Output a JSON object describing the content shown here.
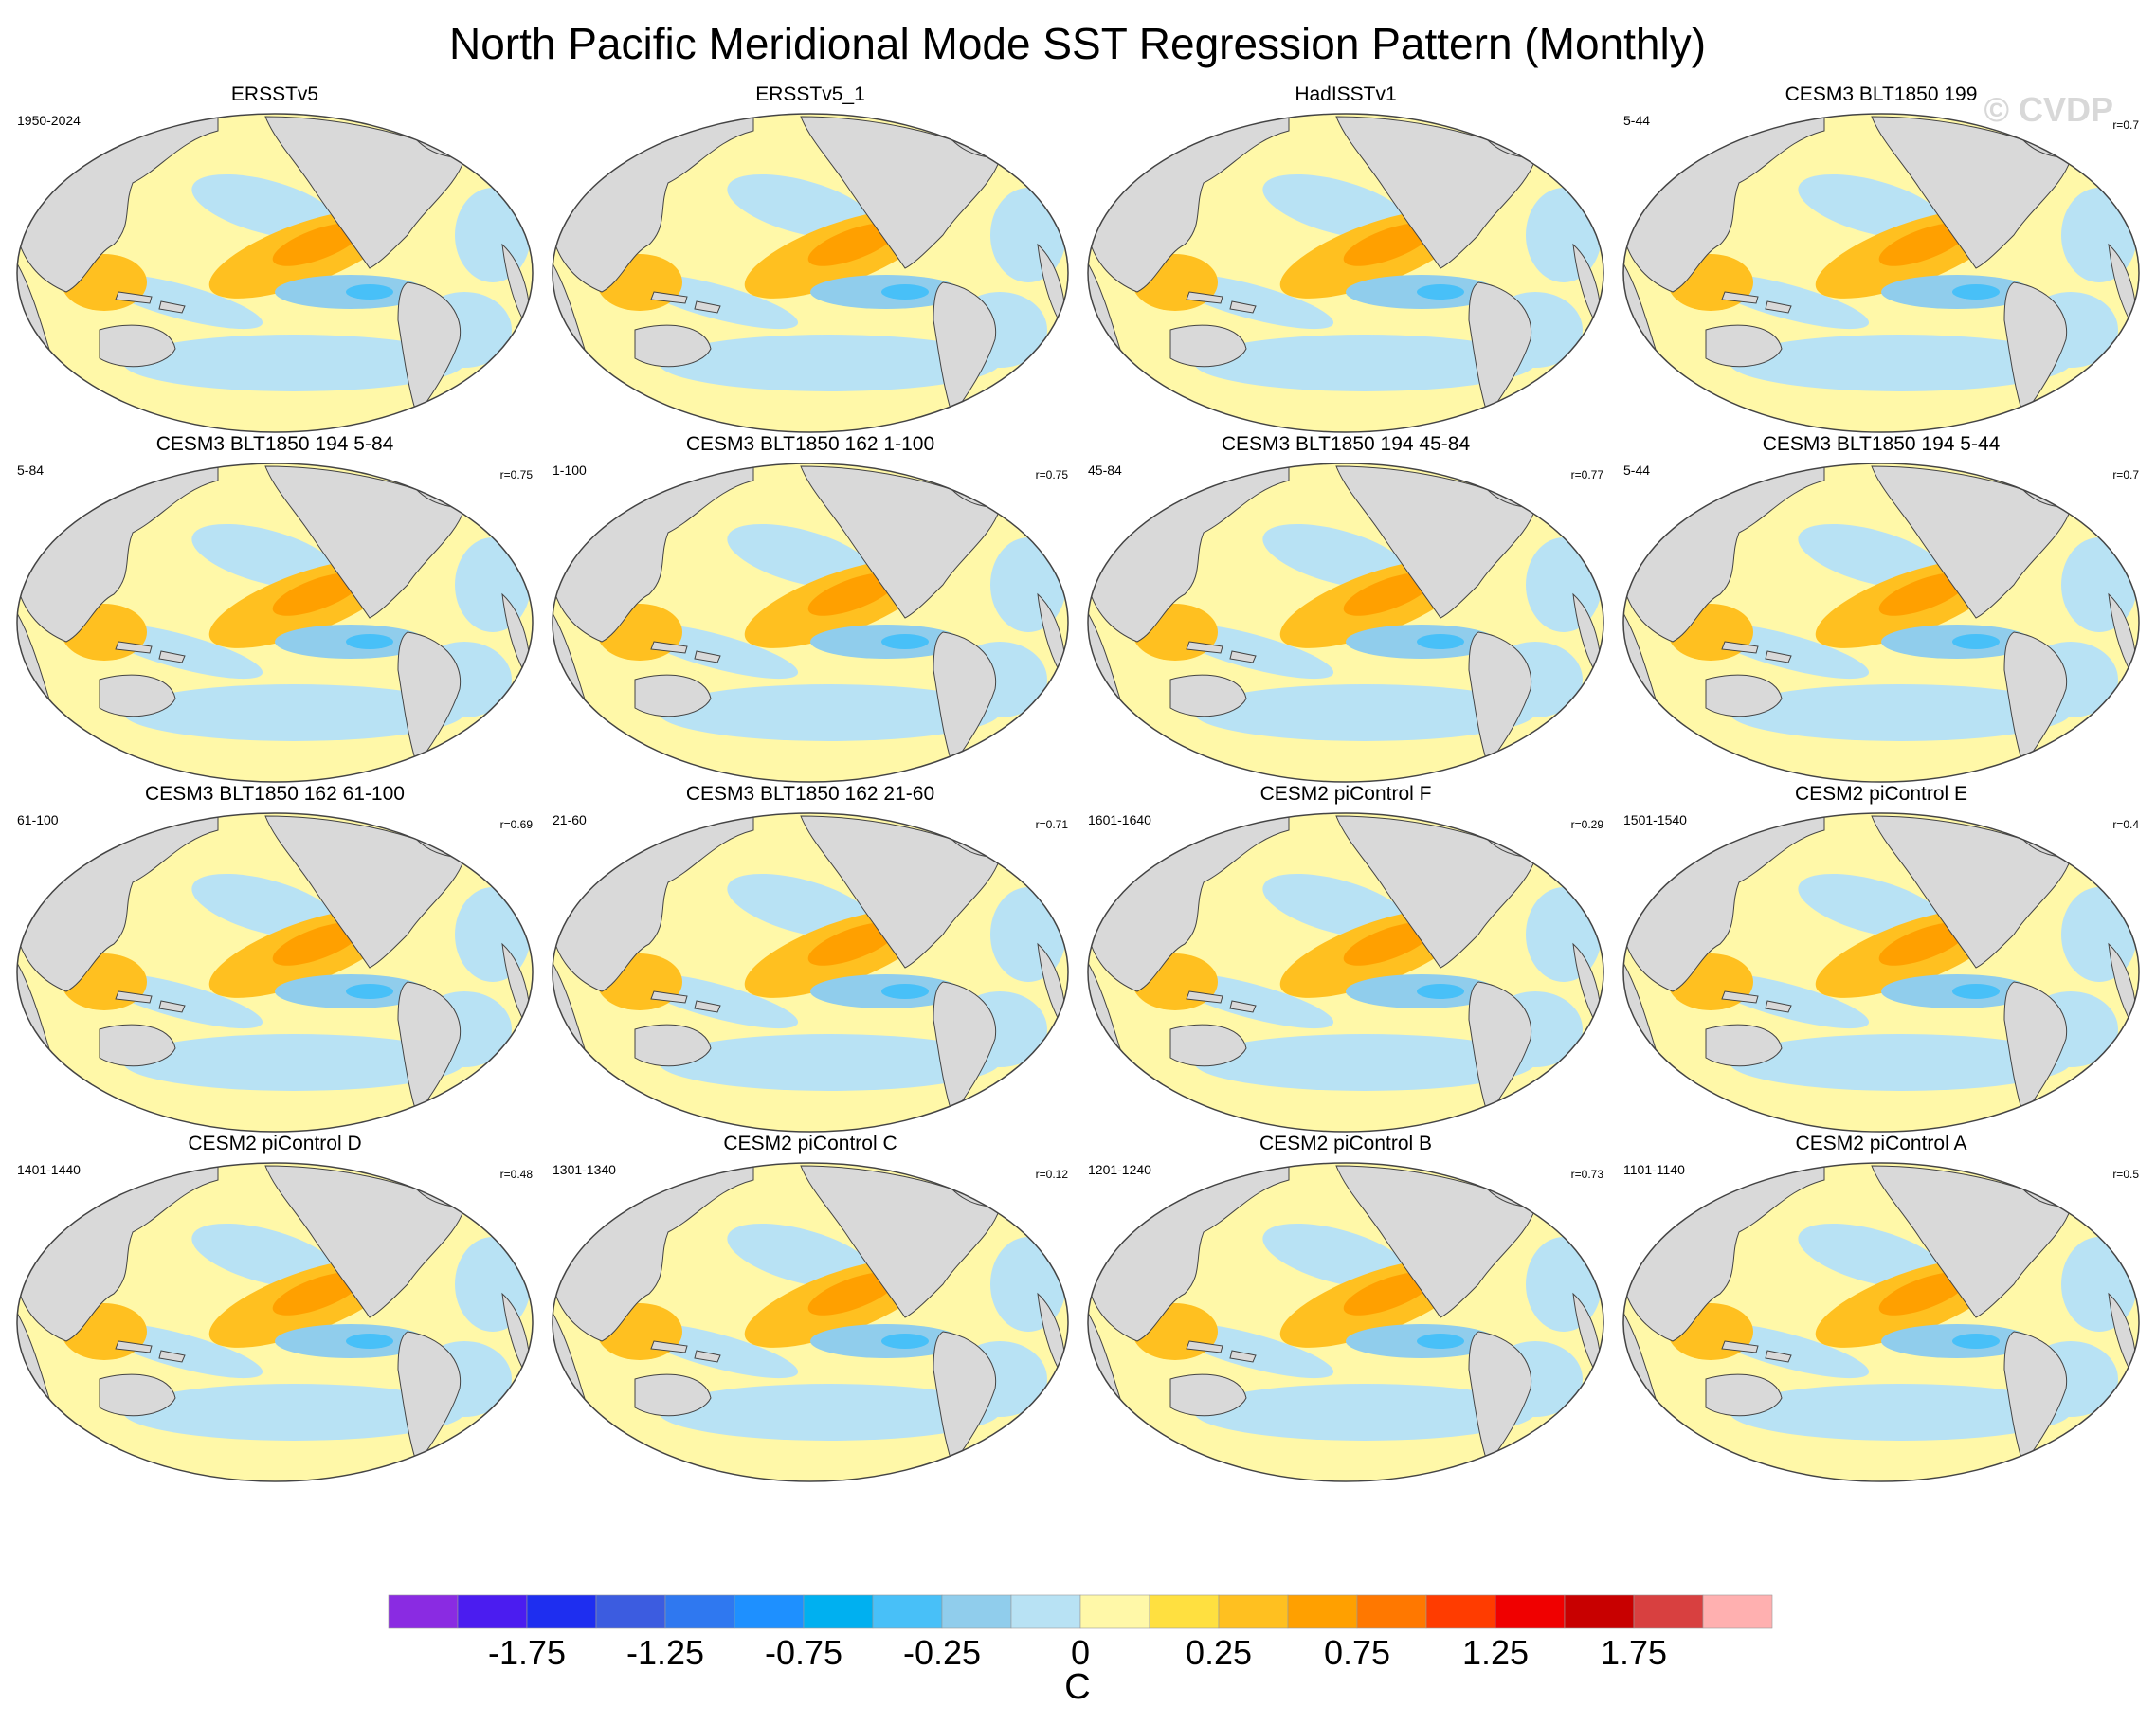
{
  "title": "North Pacific Meridional Mode SST Regression Pattern (Monthly)",
  "watermark": "© CVDP",
  "panels": [
    {
      "title": "ERSSTv5",
      "left": "1950-2024",
      "right": ""
    },
    {
      "title": "ERSSTv5_1",
      "left": "",
      "right": ""
    },
    {
      "title": "HadISSTv1",
      "left": "",
      "right": ""
    },
    {
      "title": "CESM3 BLT1850 199",
      "left": "5-44",
      "right": "r=0.7"
    },
    {
      "title": "CESM3 BLT1850 194 5-84",
      "left": "5-84",
      "right": "r=0.75"
    },
    {
      "title": "CESM3 BLT1850 162 1-100",
      "left": "1-100",
      "right": "r=0.75"
    },
    {
      "title": "CESM3 BLT1850 194 45-84",
      "left": "45-84",
      "right": "r=0.77"
    },
    {
      "title": "CESM3 BLT1850 194 5-44",
      "left": "5-44",
      "right": "r=0.7"
    },
    {
      "title": "CESM3 BLT1850 162 61-100",
      "left": "61-100",
      "right": "r=0.69"
    },
    {
      "title": "CESM3 BLT1850 162 21-60",
      "left": "21-60",
      "right": "r=0.71"
    },
    {
      "title": "CESM2 piControl F",
      "left": "1601-1640",
      "right": "r=0.29"
    },
    {
      "title": "CESM2 piControl E",
      "left": "1501-1540",
      "right": "r=0.4"
    },
    {
      "title": "CESM2 piControl D",
      "left": "1401-1440",
      "right": "r=0.48"
    },
    {
      "title": "CESM2 piControl C",
      "left": "1301-1340",
      "right": "r=0.12"
    },
    {
      "title": "CESM2 piControl B",
      "left": "1201-1240",
      "right": "r=0.73"
    },
    {
      "title": "CESM2 piControl A",
      "left": "1101-1140",
      "right": "r=0.5"
    }
  ],
  "colorbar": {
    "unit": "C",
    "colors": [
      "#8a2be2",
      "#4b1cf0",
      "#1e2ef0",
      "#3c5ce0",
      "#2f78f0",
      "#1e90ff",
      "#00b0f0",
      "#48c0f8",
      "#90cdec",
      "#b8e2f4",
      "#fff8a8",
      "#ffe040",
      "#ffc020",
      "#ffa000",
      "#ff7800",
      "#ff3c00",
      "#f00000",
      "#c80000",
      "#d84040",
      "#ffb0b0"
    ],
    "tick_labels": [
      "-1.75",
      "-1.25",
      "-0.75",
      "-0.25",
      "0",
      "0.25",
      "0.75",
      "1.25",
      "1.75"
    ]
  },
  "map_colors": {
    "land": "#d9d9d9",
    "weak_positive": "#fff8a8",
    "weak_negative": "#b8e2f4",
    "moderate_positive": "#ffc020",
    "moderate_negative": "#90cdec",
    "strong_positive": "#ffa000",
    "strong_negative": "#48c0f8"
  }
}
